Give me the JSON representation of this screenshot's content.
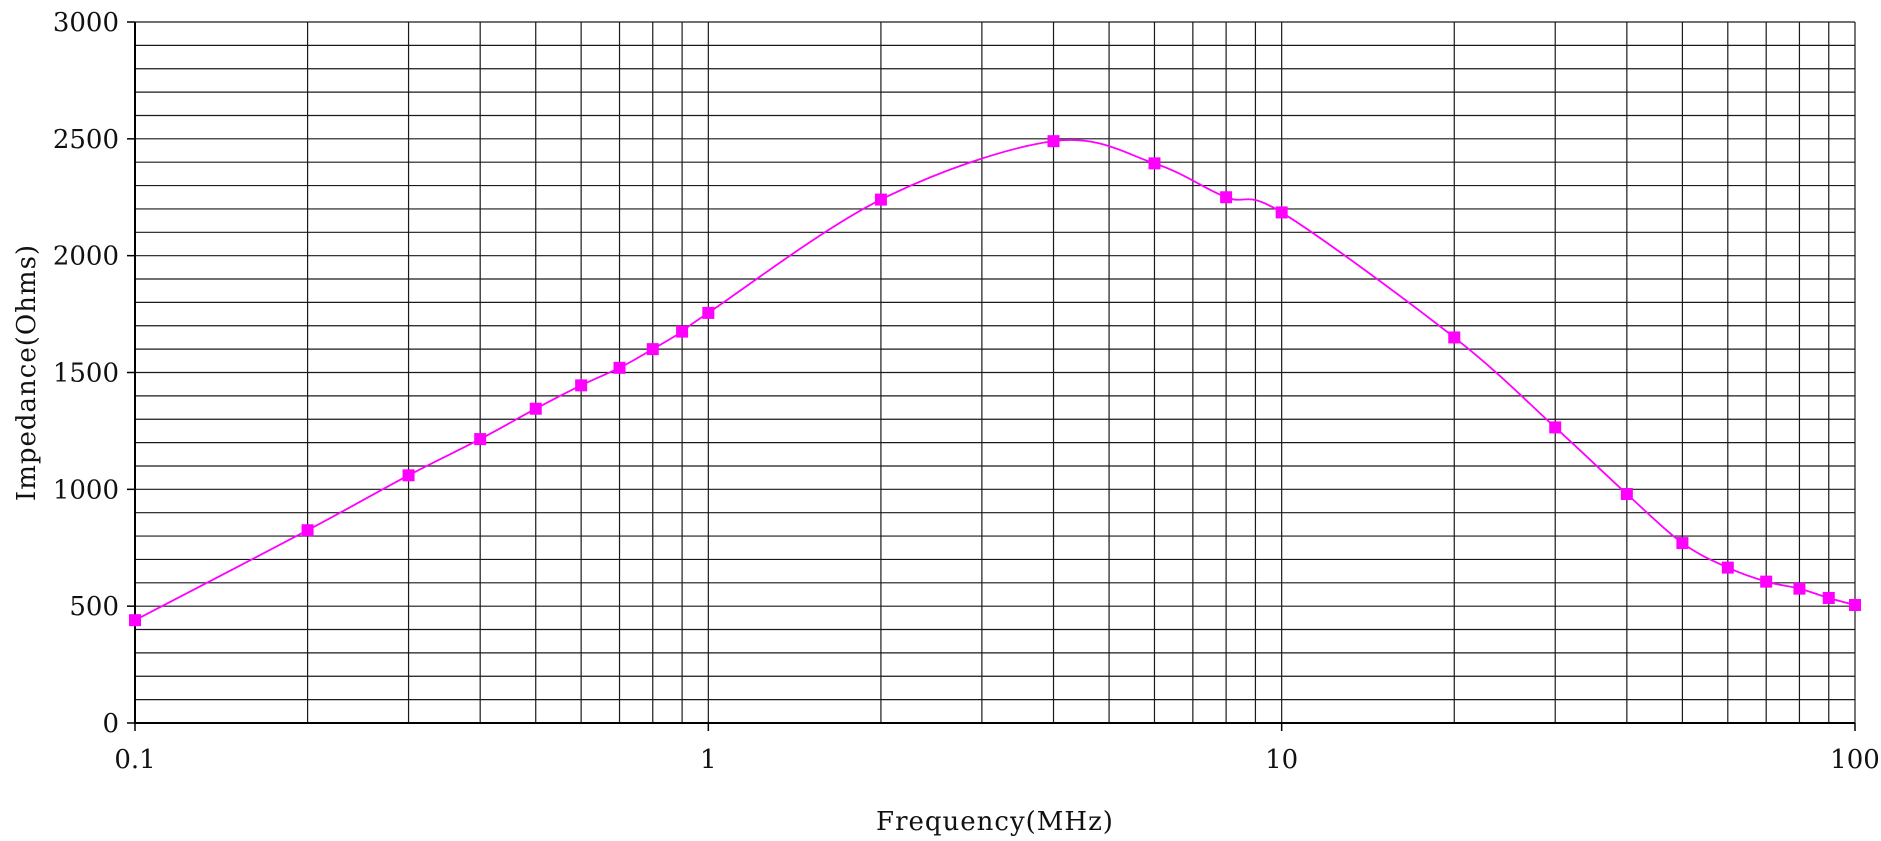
{
  "chart_data": {
    "type": "line",
    "title": "",
    "xlabel": "Frequency(MHz)",
    "ylabel": "Impedance(Ohms)",
    "x_scale": "log",
    "xlim": [
      0.1,
      100
    ],
    "ylim": [
      0,
      3000
    ],
    "x_tick_labels": [
      "0.1",
      "1",
      "10",
      "100"
    ],
    "y_tick_labels": [
      "0",
      "500",
      "1000",
      "1500",
      "2000",
      "2500",
      "3000"
    ],
    "y_minor_step": 100,
    "grid": true,
    "legend": "none",
    "series": [
      {
        "color": "#ff00ff",
        "marker": "square",
        "x": [
          0.1,
          0.2,
          0.3,
          0.4,
          0.5,
          0.6,
          0.7,
          0.8,
          0.9,
          1,
          2,
          4,
          6,
          8,
          10,
          20,
          30,
          40,
          50,
          60,
          70,
          80,
          90,
          100
        ],
        "y": [
          440,
          825,
          1060,
          1215,
          1345,
          1445,
          1520,
          1600,
          1675,
          1755,
          2240,
          2490,
          2395,
          2250,
          2185,
          1650,
          1265,
          980,
          770,
          665,
          605,
          575,
          535,
          505
        ]
      }
    ]
  }
}
